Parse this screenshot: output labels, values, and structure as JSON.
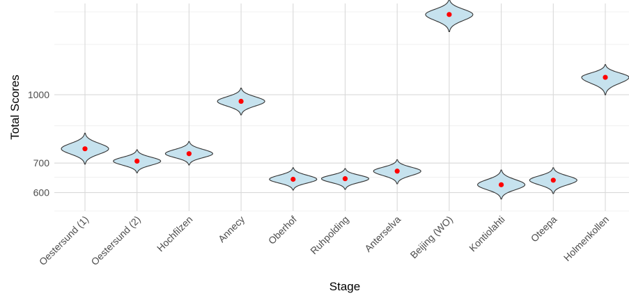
{
  "chart_data": {
    "type": "violin",
    "xlabel": "Stage",
    "ylabel": "Total Scores",
    "y_scale": "log",
    "ylim": [
      545,
      1610
    ],
    "y_ticks": [
      600,
      700,
      1000
    ],
    "y_minor_ticks": [
      650,
      850,
      1300
    ],
    "categories": [
      "Oestersund (1)",
      "Oestersund (2)",
      "Hochfilzen",
      "Annecy",
      "Oberhof",
      "Ruhpolding",
      "Anterselva",
      "Beijing (WO)",
      "Kontiolahti",
      "Oteepa",
      "Holmenkollen"
    ],
    "mean_values": [
      754,
      707,
      735,
      966,
      643,
      645,
      671,
      1520,
      625,
      640,
      1095
    ],
    "ranges": [
      [
        696,
        818
      ],
      [
        665,
        750
      ],
      [
        693,
        783
      ],
      [
        900,
        1035
      ],
      [
        608,
        683
      ],
      [
        610,
        680
      ],
      [
        628,
        712
      ],
      [
        1390,
        1645
      ],
      [
        580,
        675
      ],
      [
        597,
        683
      ],
      [
        1000,
        1170
      ]
    ],
    "grid": true,
    "colors": {
      "violin_fill": "#c6e2ee",
      "violin_stroke": "#333333",
      "mean_point": "#ff0000"
    }
  }
}
